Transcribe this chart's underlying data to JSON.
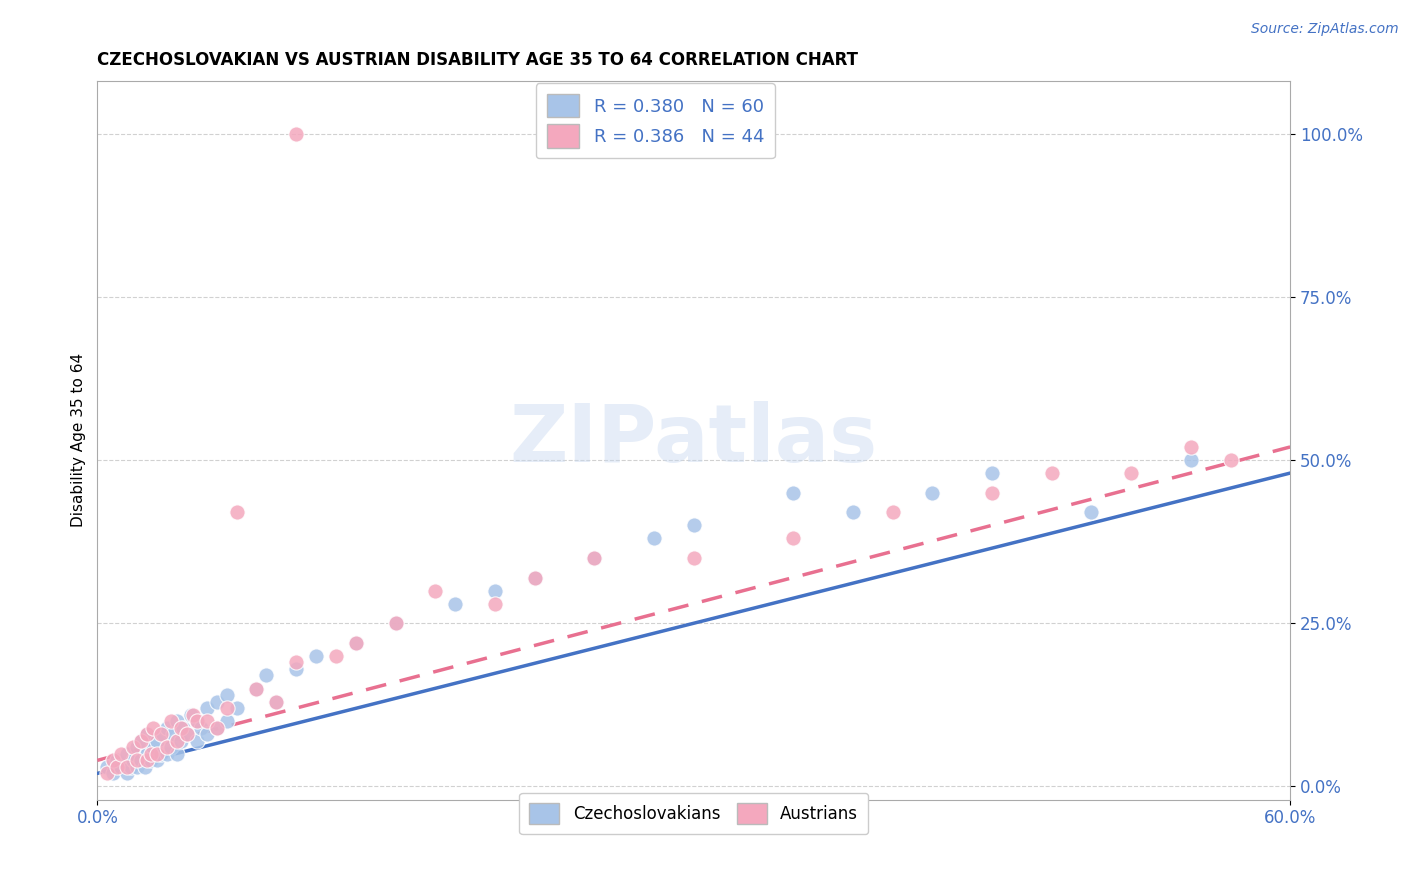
{
  "title": "CZECHOSLOVAKIAN VS AUSTRIAN DISABILITY AGE 35 TO 64 CORRELATION CHART",
  "source": "Source: ZipAtlas.com",
  "ylabel": "Disability Age 35 to 64",
  "xlim": [
    0.0,
    0.6
  ],
  "ylim": [
    -0.02,
    1.08
  ],
  "ytick_values": [
    0.0,
    0.25,
    0.5,
    0.75,
    1.0
  ],
  "ytick_labels": [
    "0.0%",
    "25.0%",
    "50.0%",
    "75.0%",
    "100.0%"
  ],
  "xtick_values": [
    0.0,
    0.6
  ],
  "xtick_labels": [
    "0.0%",
    "60.0%"
  ],
  "blue_R": 0.38,
  "blue_N": 60,
  "pink_R": 0.386,
  "pink_N": 44,
  "blue_color": "#A8C4E8",
  "pink_color": "#F4A8BE",
  "blue_line_color": "#4472C4",
  "pink_line_color": "#E87090",
  "watermark_text": "ZIPatlas",
  "blue_scatter_x": [
    0.005,
    0.008,
    0.01,
    0.012,
    0.015,
    0.015,
    0.017,
    0.018,
    0.02,
    0.02,
    0.022,
    0.022,
    0.024,
    0.025,
    0.025,
    0.027,
    0.028,
    0.03,
    0.03,
    0.032,
    0.033,
    0.035,
    0.035,
    0.037,
    0.038,
    0.04,
    0.04,
    0.042,
    0.043,
    0.045,
    0.047,
    0.05,
    0.05,
    0.052,
    0.055,
    0.055,
    0.06,
    0.06,
    0.065,
    0.065,
    0.07,
    0.08,
    0.085,
    0.09,
    0.1,
    0.11,
    0.13,
    0.15,
    0.18,
    0.2,
    0.22,
    0.25,
    0.28,
    0.3,
    0.35,
    0.38,
    0.42,
    0.45,
    0.5,
    0.55
  ],
  "blue_scatter_y": [
    0.03,
    0.02,
    0.04,
    0.03,
    0.02,
    0.05,
    0.03,
    0.04,
    0.03,
    0.06,
    0.04,
    0.07,
    0.03,
    0.05,
    0.08,
    0.04,
    0.06,
    0.04,
    0.07,
    0.05,
    0.08,
    0.05,
    0.09,
    0.06,
    0.08,
    0.05,
    0.1,
    0.07,
    0.09,
    0.08,
    0.11,
    0.07,
    0.1,
    0.09,
    0.08,
    0.12,
    0.09,
    0.13,
    0.1,
    0.14,
    0.12,
    0.15,
    0.17,
    0.13,
    0.18,
    0.2,
    0.22,
    0.25,
    0.28,
    0.3,
    0.32,
    0.35,
    0.38,
    0.4,
    0.45,
    0.42,
    0.45,
    0.48,
    0.42,
    0.5
  ],
  "pink_scatter_x": [
    0.005,
    0.008,
    0.01,
    0.012,
    0.015,
    0.018,
    0.02,
    0.022,
    0.025,
    0.025,
    0.027,
    0.028,
    0.03,
    0.032,
    0.035,
    0.037,
    0.04,
    0.042,
    0.045,
    0.048,
    0.05,
    0.055,
    0.06,
    0.065,
    0.07,
    0.08,
    0.09,
    0.1,
    0.12,
    0.13,
    0.15,
    0.17,
    0.2,
    0.22,
    0.25,
    0.3,
    0.35,
    0.4,
    0.45,
    0.48,
    0.52,
    0.55,
    0.57,
    0.1
  ],
  "pink_scatter_y": [
    0.02,
    0.04,
    0.03,
    0.05,
    0.03,
    0.06,
    0.04,
    0.07,
    0.04,
    0.08,
    0.05,
    0.09,
    0.05,
    0.08,
    0.06,
    0.1,
    0.07,
    0.09,
    0.08,
    0.11,
    0.1,
    0.1,
    0.09,
    0.12,
    0.42,
    0.15,
    0.13,
    0.19,
    0.2,
    0.22,
    0.25,
    0.3,
    0.28,
    0.32,
    0.35,
    0.35,
    0.38,
    0.42,
    0.45,
    0.48,
    0.48,
    0.52,
    0.5,
    1.0
  ],
  "blue_line_x": [
    0.0,
    0.6
  ],
  "blue_line_y": [
    0.02,
    0.48
  ],
  "pink_line_x": [
    0.0,
    0.6
  ],
  "pink_line_y": [
    0.04,
    0.52
  ]
}
